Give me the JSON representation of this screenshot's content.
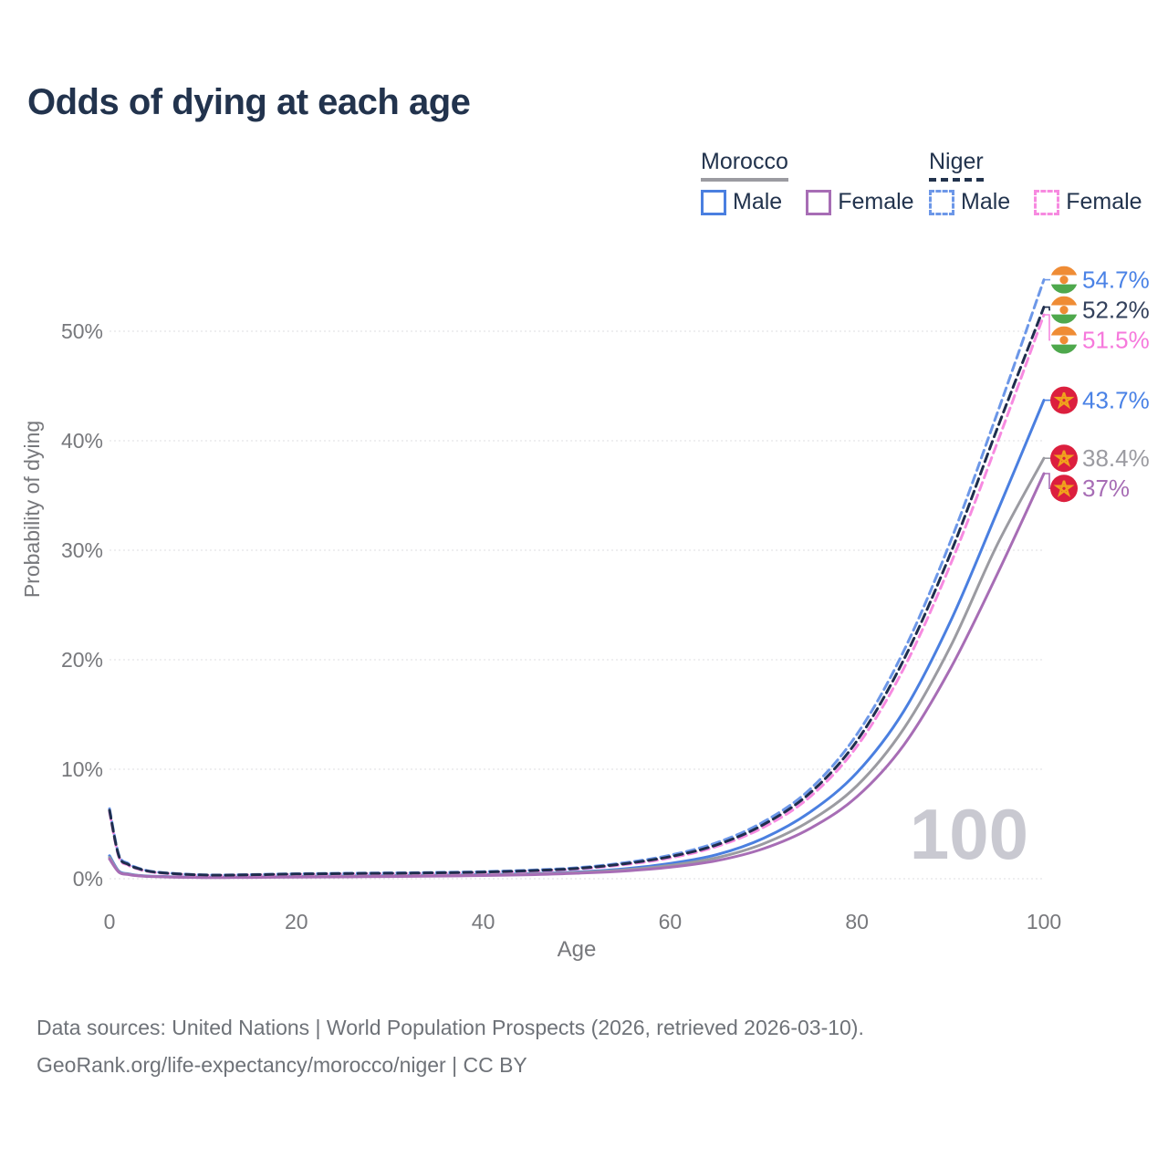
{
  "title": "Odds of dying at each age",
  "watermark": "100",
  "legend": {
    "groups": [
      {
        "country": "Morocco",
        "line_style": "solid",
        "underline_color": "#9b9ba1",
        "items": [
          {
            "label": "Male",
            "color": "#4a7fe0"
          },
          {
            "label": "Female",
            "color": "#a76db5"
          }
        ]
      },
      {
        "country": "Niger",
        "line_style": "dashed",
        "underline_color": "#22334d",
        "items": [
          {
            "label": "Male",
            "color": "#6c97e8"
          },
          {
            "label": "Female",
            "color": "#f78ae0"
          }
        ]
      }
    ]
  },
  "source": {
    "line1": "Data sources: United Nations | World Population Prospects (2026, retrieved 2026-03-10).",
    "line2": "GeoRank.org/life-expectancy/morocco/niger | CC BY"
  },
  "chart_data": {
    "type": "line",
    "title": "Odds of dying at each age",
    "xlabel": "Age",
    "ylabel": "Probability of dying",
    "xlim": [
      0,
      100
    ],
    "ylim": [
      0,
      56
    ],
    "xticks": [
      0,
      20,
      40,
      60,
      80,
      100
    ],
    "yticks": [
      0,
      10,
      20,
      30,
      40,
      50
    ],
    "ytick_suffix": "%",
    "grid": "horizontal-dotted",
    "legend_position": "top-right",
    "age_counter": "100",
    "series": [
      {
        "name": "Morocco Male",
        "country": "Morocco",
        "sex": "male",
        "color": "#4a7fe0",
        "label_color": "#4a82e6",
        "dash": "none",
        "flag": "morocco",
        "end_value": 43.7,
        "end_label": "43.7%",
        "points": [
          [
            0,
            2.1
          ],
          [
            1,
            0.7
          ],
          [
            2,
            0.45
          ],
          [
            3,
            0.32
          ],
          [
            5,
            0.22
          ],
          [
            10,
            0.14
          ],
          [
            15,
            0.16
          ],
          [
            20,
            0.22
          ],
          [
            25,
            0.26
          ],
          [
            30,
            0.29
          ],
          [
            35,
            0.33
          ],
          [
            40,
            0.38
          ],
          [
            45,
            0.47
          ],
          [
            50,
            0.62
          ],
          [
            55,
            0.9
          ],
          [
            60,
            1.4
          ],
          [
            65,
            2.2
          ],
          [
            70,
            3.7
          ],
          [
            75,
            6.1
          ],
          [
            80,
            9.7
          ],
          [
            85,
            15.3
          ],
          [
            90,
            23.5
          ],
          [
            95,
            33.5
          ],
          [
            100,
            43.7
          ]
        ]
      },
      {
        "name": "Morocco Both sexes",
        "country": "Morocco",
        "sex": "both",
        "color": "#9b9ba1",
        "label_color": "#9b9ba1",
        "dash": "none",
        "flag": "morocco",
        "end_value": 38.4,
        "end_label": "38.4%",
        "points": [
          [
            0,
            1.95
          ],
          [
            1,
            0.65
          ],
          [
            2,
            0.42
          ],
          [
            3,
            0.3
          ],
          [
            5,
            0.2
          ],
          [
            10,
            0.12
          ],
          [
            15,
            0.14
          ],
          [
            20,
            0.18
          ],
          [
            25,
            0.21
          ],
          [
            30,
            0.24
          ],
          [
            35,
            0.28
          ],
          [
            40,
            0.33
          ],
          [
            45,
            0.42
          ],
          [
            50,
            0.56
          ],
          [
            55,
            0.8
          ],
          [
            60,
            1.22
          ],
          [
            65,
            1.92
          ],
          [
            70,
            3.2
          ],
          [
            75,
            5.3
          ],
          [
            80,
            8.5
          ],
          [
            85,
            13.7
          ],
          [
            90,
            21.2
          ],
          [
            95,
            30.5
          ],
          [
            100,
            38.4
          ]
        ]
      },
      {
        "name": "Morocco Female",
        "country": "Morocco",
        "sex": "female",
        "color": "#a76db5",
        "label_color": "#a76db5",
        "dash": "none",
        "flag": "morocco",
        "end_value": 37,
        "end_label": "37%",
        "points": [
          [
            0,
            1.8
          ],
          [
            1,
            0.6
          ],
          [
            2,
            0.38
          ],
          [
            3,
            0.27
          ],
          [
            5,
            0.18
          ],
          [
            10,
            0.11
          ],
          [
            15,
            0.12
          ],
          [
            20,
            0.15
          ],
          [
            25,
            0.17
          ],
          [
            30,
            0.2
          ],
          [
            35,
            0.24
          ],
          [
            40,
            0.29
          ],
          [
            45,
            0.37
          ],
          [
            50,
            0.5
          ],
          [
            55,
            0.7
          ],
          [
            60,
            1.05
          ],
          [
            65,
            1.65
          ],
          [
            70,
            2.75
          ],
          [
            75,
            4.6
          ],
          [
            80,
            7.5
          ],
          [
            85,
            12.2
          ],
          [
            90,
            19.2
          ],
          [
            95,
            27.8
          ],
          [
            100,
            37
          ]
        ]
      },
      {
        "name": "Niger Male",
        "country": "Niger",
        "sex": "male",
        "color": "#6c97e8",
        "label_color": "#4a82e6",
        "dash": "dashed",
        "flag": "niger",
        "end_value": 54.7,
        "end_label": "54.7%",
        "points": [
          [
            0,
            6.4
          ],
          [
            1,
            2.2
          ],
          [
            2,
            1.4
          ],
          [
            3,
            1.0
          ],
          [
            5,
            0.62
          ],
          [
            10,
            0.36
          ],
          [
            15,
            0.38
          ],
          [
            20,
            0.46
          ],
          [
            25,
            0.5
          ],
          [
            30,
            0.54
          ],
          [
            35,
            0.58
          ],
          [
            40,
            0.65
          ],
          [
            45,
            0.78
          ],
          [
            50,
            1.0
          ],
          [
            55,
            1.45
          ],
          [
            60,
            2.15
          ],
          [
            65,
            3.3
          ],
          [
            70,
            5.2
          ],
          [
            75,
            8.2
          ],
          [
            80,
            13.2
          ],
          [
            85,
            20.8
          ],
          [
            90,
            30.8
          ],
          [
            95,
            42.5
          ],
          [
            100,
            54.7
          ]
        ]
      },
      {
        "name": "Niger Female",
        "country": "Niger",
        "sex": "female",
        "color": "#f78ae0",
        "label_color": "#f679dc",
        "dash": "dashed",
        "flag": "niger",
        "end_value": 51.5,
        "end_label": "51.5%",
        "points": [
          [
            0,
            6.1
          ],
          [
            1,
            2.0
          ],
          [
            2,
            1.25
          ],
          [
            3,
            0.9
          ],
          [
            5,
            0.56
          ],
          [
            10,
            0.32
          ],
          [
            15,
            0.34
          ],
          [
            20,
            0.4
          ],
          [
            25,
            0.44
          ],
          [
            30,
            0.47
          ],
          [
            35,
            0.51
          ],
          [
            40,
            0.57
          ],
          [
            45,
            0.68
          ],
          [
            50,
            0.88
          ],
          [
            55,
            1.28
          ],
          [
            60,
            1.9
          ],
          [
            65,
            2.95
          ],
          [
            70,
            4.7
          ],
          [
            75,
            7.5
          ],
          [
            80,
            12.1
          ],
          [
            85,
            19.2
          ],
          [
            90,
            28.7
          ],
          [
            95,
            39.8
          ],
          [
            100,
            51.5
          ]
        ]
      },
      {
        "name": "Niger Both sexes",
        "country": "Niger",
        "sex": "both",
        "color": "#1f2e4d",
        "label_color": "#33415c",
        "dash": "dashed",
        "flag": "niger",
        "end_value": 52.2,
        "end_label": "52.2%",
        "points": [
          [
            0,
            6.25
          ],
          [
            1,
            2.1
          ],
          [
            2,
            1.32
          ],
          [
            3,
            0.95
          ],
          [
            5,
            0.59
          ],
          [
            10,
            0.34
          ],
          [
            15,
            0.36
          ],
          [
            20,
            0.43
          ],
          [
            25,
            0.47
          ],
          [
            30,
            0.5
          ],
          [
            35,
            0.54
          ],
          [
            40,
            0.61
          ],
          [
            45,
            0.73
          ],
          [
            50,
            0.94
          ],
          [
            55,
            1.36
          ],
          [
            60,
            2.02
          ],
          [
            65,
            3.1
          ],
          [
            70,
            4.95
          ],
          [
            75,
            7.85
          ],
          [
            80,
            12.6
          ],
          [
            85,
            20.0
          ],
          [
            90,
            29.7
          ],
          [
            95,
            41.1
          ],
          [
            100,
            52.2
          ]
        ]
      }
    ],
    "flag_colors": {
      "morocco": {
        "bg": "#dc1f3e",
        "star": "#f0a31c"
      },
      "niger": {
        "top": "#ef8c35",
        "middle": "#ffffff",
        "bottom": "#4ea84c",
        "disc": "#ef8c35"
      }
    }
  }
}
